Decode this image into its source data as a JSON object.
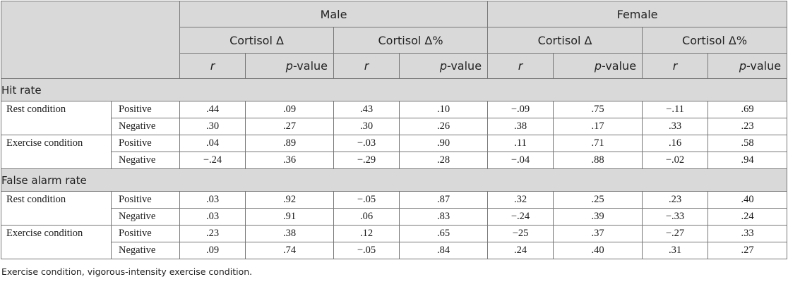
{
  "groups": [
    "Male",
    "Female"
  ],
  "measures": [
    "Cortisol Δ",
    "Cortisol Δ%",
    "Cortisol Δ",
    "Cortisol Δ%"
  ],
  "columns": {
    "r": "r",
    "p_italic": "p",
    "p_suffix": "-value"
  },
  "sections": [
    {
      "title": "Hit rate",
      "conditions": [
        {
          "name": "Rest condition",
          "rows": [
            {
              "valence": "Positive",
              "values": [
                ".44",
                ".09",
                ".43",
                ".10",
                "−.09",
                ".75",
                "−.11",
                ".69"
              ]
            },
            {
              "valence": "Negative",
              "values": [
                ".30",
                ".27",
                ".30",
                ".26",
                ".38",
                ".17",
                ".33",
                ".23"
              ]
            }
          ]
        },
        {
          "name": "Exercise condition",
          "rows": [
            {
              "valence": "Positive",
              "values": [
                ".04",
                ".89",
                "−.03",
                ".90",
                ".11",
                ".71",
                ".16",
                ".58"
              ]
            },
            {
              "valence": "Negative",
              "values": [
                "−.24",
                ".36",
                "−.29",
                ".28",
                "−.04",
                ".88",
                "−.02",
                ".94"
              ]
            }
          ]
        }
      ]
    },
    {
      "title": "False alarm rate",
      "conditions": [
        {
          "name": "Rest condition",
          "rows": [
            {
              "valence": "Positive",
              "values": [
                ".03",
                ".92",
                "−.05",
                ".87",
                ".32",
                ".25",
                ".23",
                ".40"
              ]
            },
            {
              "valence": "Negative",
              "values": [
                ".03",
                ".91",
                ".06",
                ".83",
                "−.24",
                ".39",
                "−.33",
                ".24"
              ]
            }
          ]
        },
        {
          "name": "Exercise condition",
          "rows": [
            {
              "valence": "Positive",
              "values": [
                ".23",
                ".38",
                ".12",
                ".65",
                "−25",
                ".37",
                "−.27",
                ".33"
              ]
            },
            {
              "valence": "Negative",
              "values": [
                ".09",
                ".74",
                "−.05",
                ".84",
                ".24",
                ".40",
                ".31",
                ".27"
              ]
            }
          ]
        }
      ]
    }
  ],
  "footnote": "Exercise condition, vigorous-intensity exercise condition."
}
